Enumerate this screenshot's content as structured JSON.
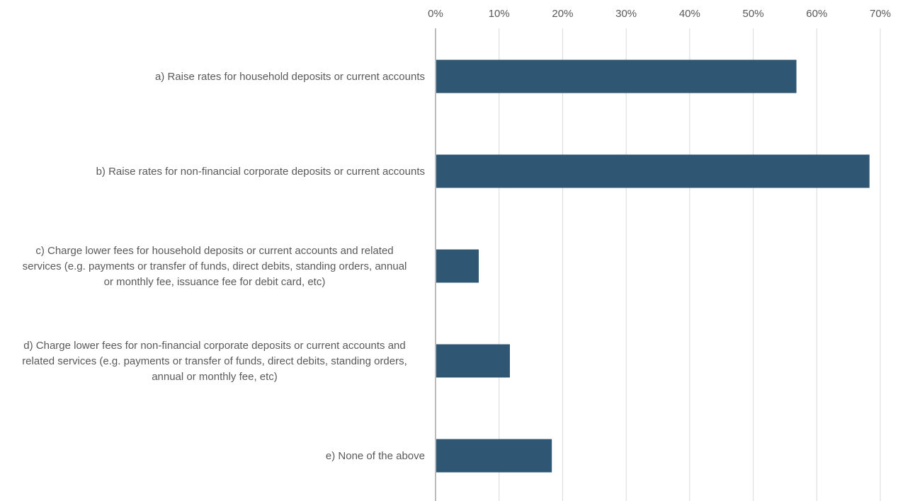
{
  "chart_data": {
    "type": "bar",
    "orientation": "horizontal",
    "categories": [
      "a) Raise rates for household deposits or current accounts",
      "b) Raise rates for non-financial corporate deposits or current accounts",
      "c) Charge lower fees for household deposits or current accounts and related services (e.g. payments or transfer of funds, direct debits, standing orders, annual or monthly fee, issuance fee for debit card, etc)",
      "d) Charge lower fees for non-financial corporate deposits or current accounts and related services (e.g. payments or transfer of funds, direct debits, standing orders, annual or monthly fee, etc)",
      "e) None of the above"
    ],
    "category_lines": [
      [
        "a) Raise rates for household deposits or current accounts"
      ],
      [
        "b) Raise rates for non-financial corporate deposits or current accounts"
      ],
      [
        "c) Charge lower fees for household deposits or current accounts and related",
        "services (e.g. payments or transfer of funds, direct debits, standing orders, annual",
        "or monthly fee, issuance fee for debit card, etc)"
      ],
      [
        "d) Charge lower fees for non-financial corporate deposits or current accounts and",
        "related services (e.g. payments or transfer of funds, direct debits, standing orders,",
        "annual or monthly fee, etc)"
      ],
      [
        "e) None of the above"
      ]
    ],
    "values": [
      56.8,
      68.3,
      6.8,
      11.7,
      18.3
    ],
    "xlim": [
      0,
      70
    ],
    "x_ticks": [
      0,
      10,
      20,
      30,
      40,
      50,
      60,
      70
    ],
    "x_tick_labels": [
      "0%",
      "10%",
      "20%",
      "30%",
      "40%",
      "50%",
      "60%",
      "70%"
    ],
    "x_axis_position": "top",
    "grid": true,
    "title": "",
    "xlabel": "",
    "ylabel": "",
    "colors": {
      "bar": "#2f5672",
      "grid": "#d9d9d9",
      "axis": "#a6a6a6",
      "text": "#595959"
    }
  }
}
